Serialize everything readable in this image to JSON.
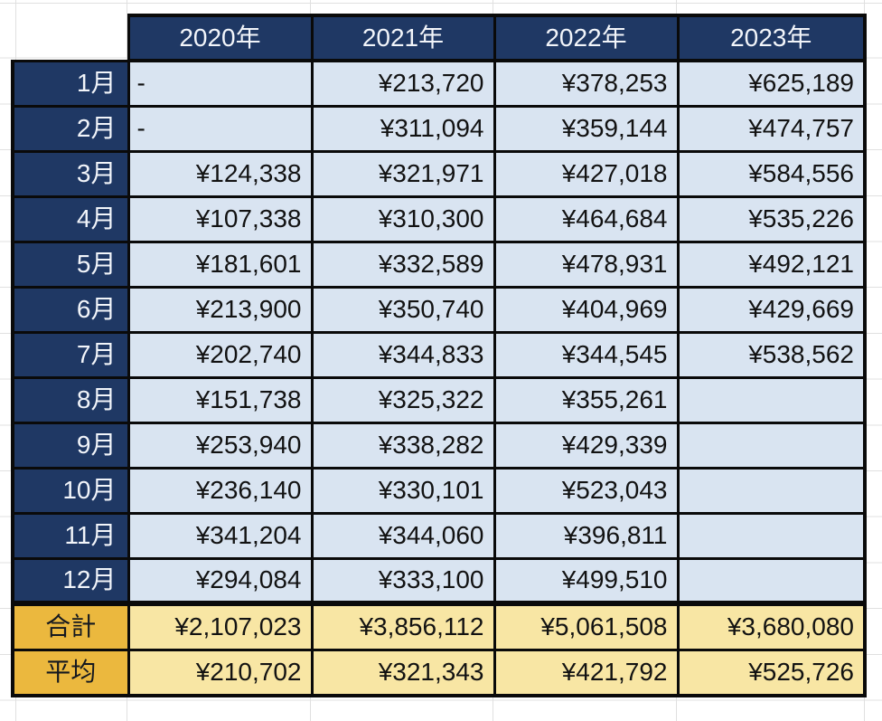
{
  "table": {
    "title": "monthly-sales-by-year",
    "columns": [
      "2020年",
      "2021年",
      "2022年",
      "2023年"
    ],
    "rows": [
      {
        "label": "1月",
        "values": [
          "-",
          "¥213,720",
          "¥378,253",
          "¥625,189"
        ]
      },
      {
        "label": "2月",
        "values": [
          "-",
          "¥311,094",
          "¥359,144",
          "¥474,757"
        ]
      },
      {
        "label": "3月",
        "values": [
          "¥124,338",
          "¥321,971",
          "¥427,018",
          "¥584,556"
        ]
      },
      {
        "label": "4月",
        "values": [
          "¥107,338",
          "¥310,300",
          "¥464,684",
          "¥535,226"
        ]
      },
      {
        "label": "5月",
        "values": [
          "¥181,601",
          "¥332,589",
          "¥478,931",
          "¥492,121"
        ]
      },
      {
        "label": "6月",
        "values": [
          "¥213,900",
          "¥350,740",
          "¥404,969",
          "¥429,669"
        ]
      },
      {
        "label": "7月",
        "values": [
          "¥202,740",
          "¥344,833",
          "¥344,545",
          "¥538,562"
        ]
      },
      {
        "label": "8月",
        "values": [
          "¥151,738",
          "¥325,322",
          "¥355,261",
          ""
        ]
      },
      {
        "label": "9月",
        "values": [
          "¥253,940",
          "¥338,282",
          "¥429,339",
          ""
        ]
      },
      {
        "label": "10月",
        "values": [
          "¥236,140",
          "¥330,101",
          "¥523,043",
          ""
        ]
      },
      {
        "label": "11月",
        "values": [
          "¥341,204",
          "¥344,060",
          "¥396,811",
          ""
        ]
      },
      {
        "label": "12月",
        "values": [
          "¥294,084",
          "¥333,100",
          "¥499,510",
          ""
        ]
      }
    ],
    "summary_rows": [
      {
        "label": "合計",
        "values": [
          "¥2,107,023",
          "¥3,856,112",
          "¥5,061,508",
          "¥3,680,080"
        ]
      },
      {
        "label": "平均",
        "values": [
          "¥210,702",
          "¥321,343",
          "¥421,792",
          "¥525,726"
        ]
      }
    ]
  },
  "colors": {
    "header_bg": "#1f3864",
    "header_text": "#f2f5fa",
    "data_bg": "#d9e4f1",
    "summary_label_bg": "#ebb83e",
    "summary_data_bg": "#f8e6a4",
    "border": "#0a0a0a",
    "gridline": "#e0e0e0"
  }
}
